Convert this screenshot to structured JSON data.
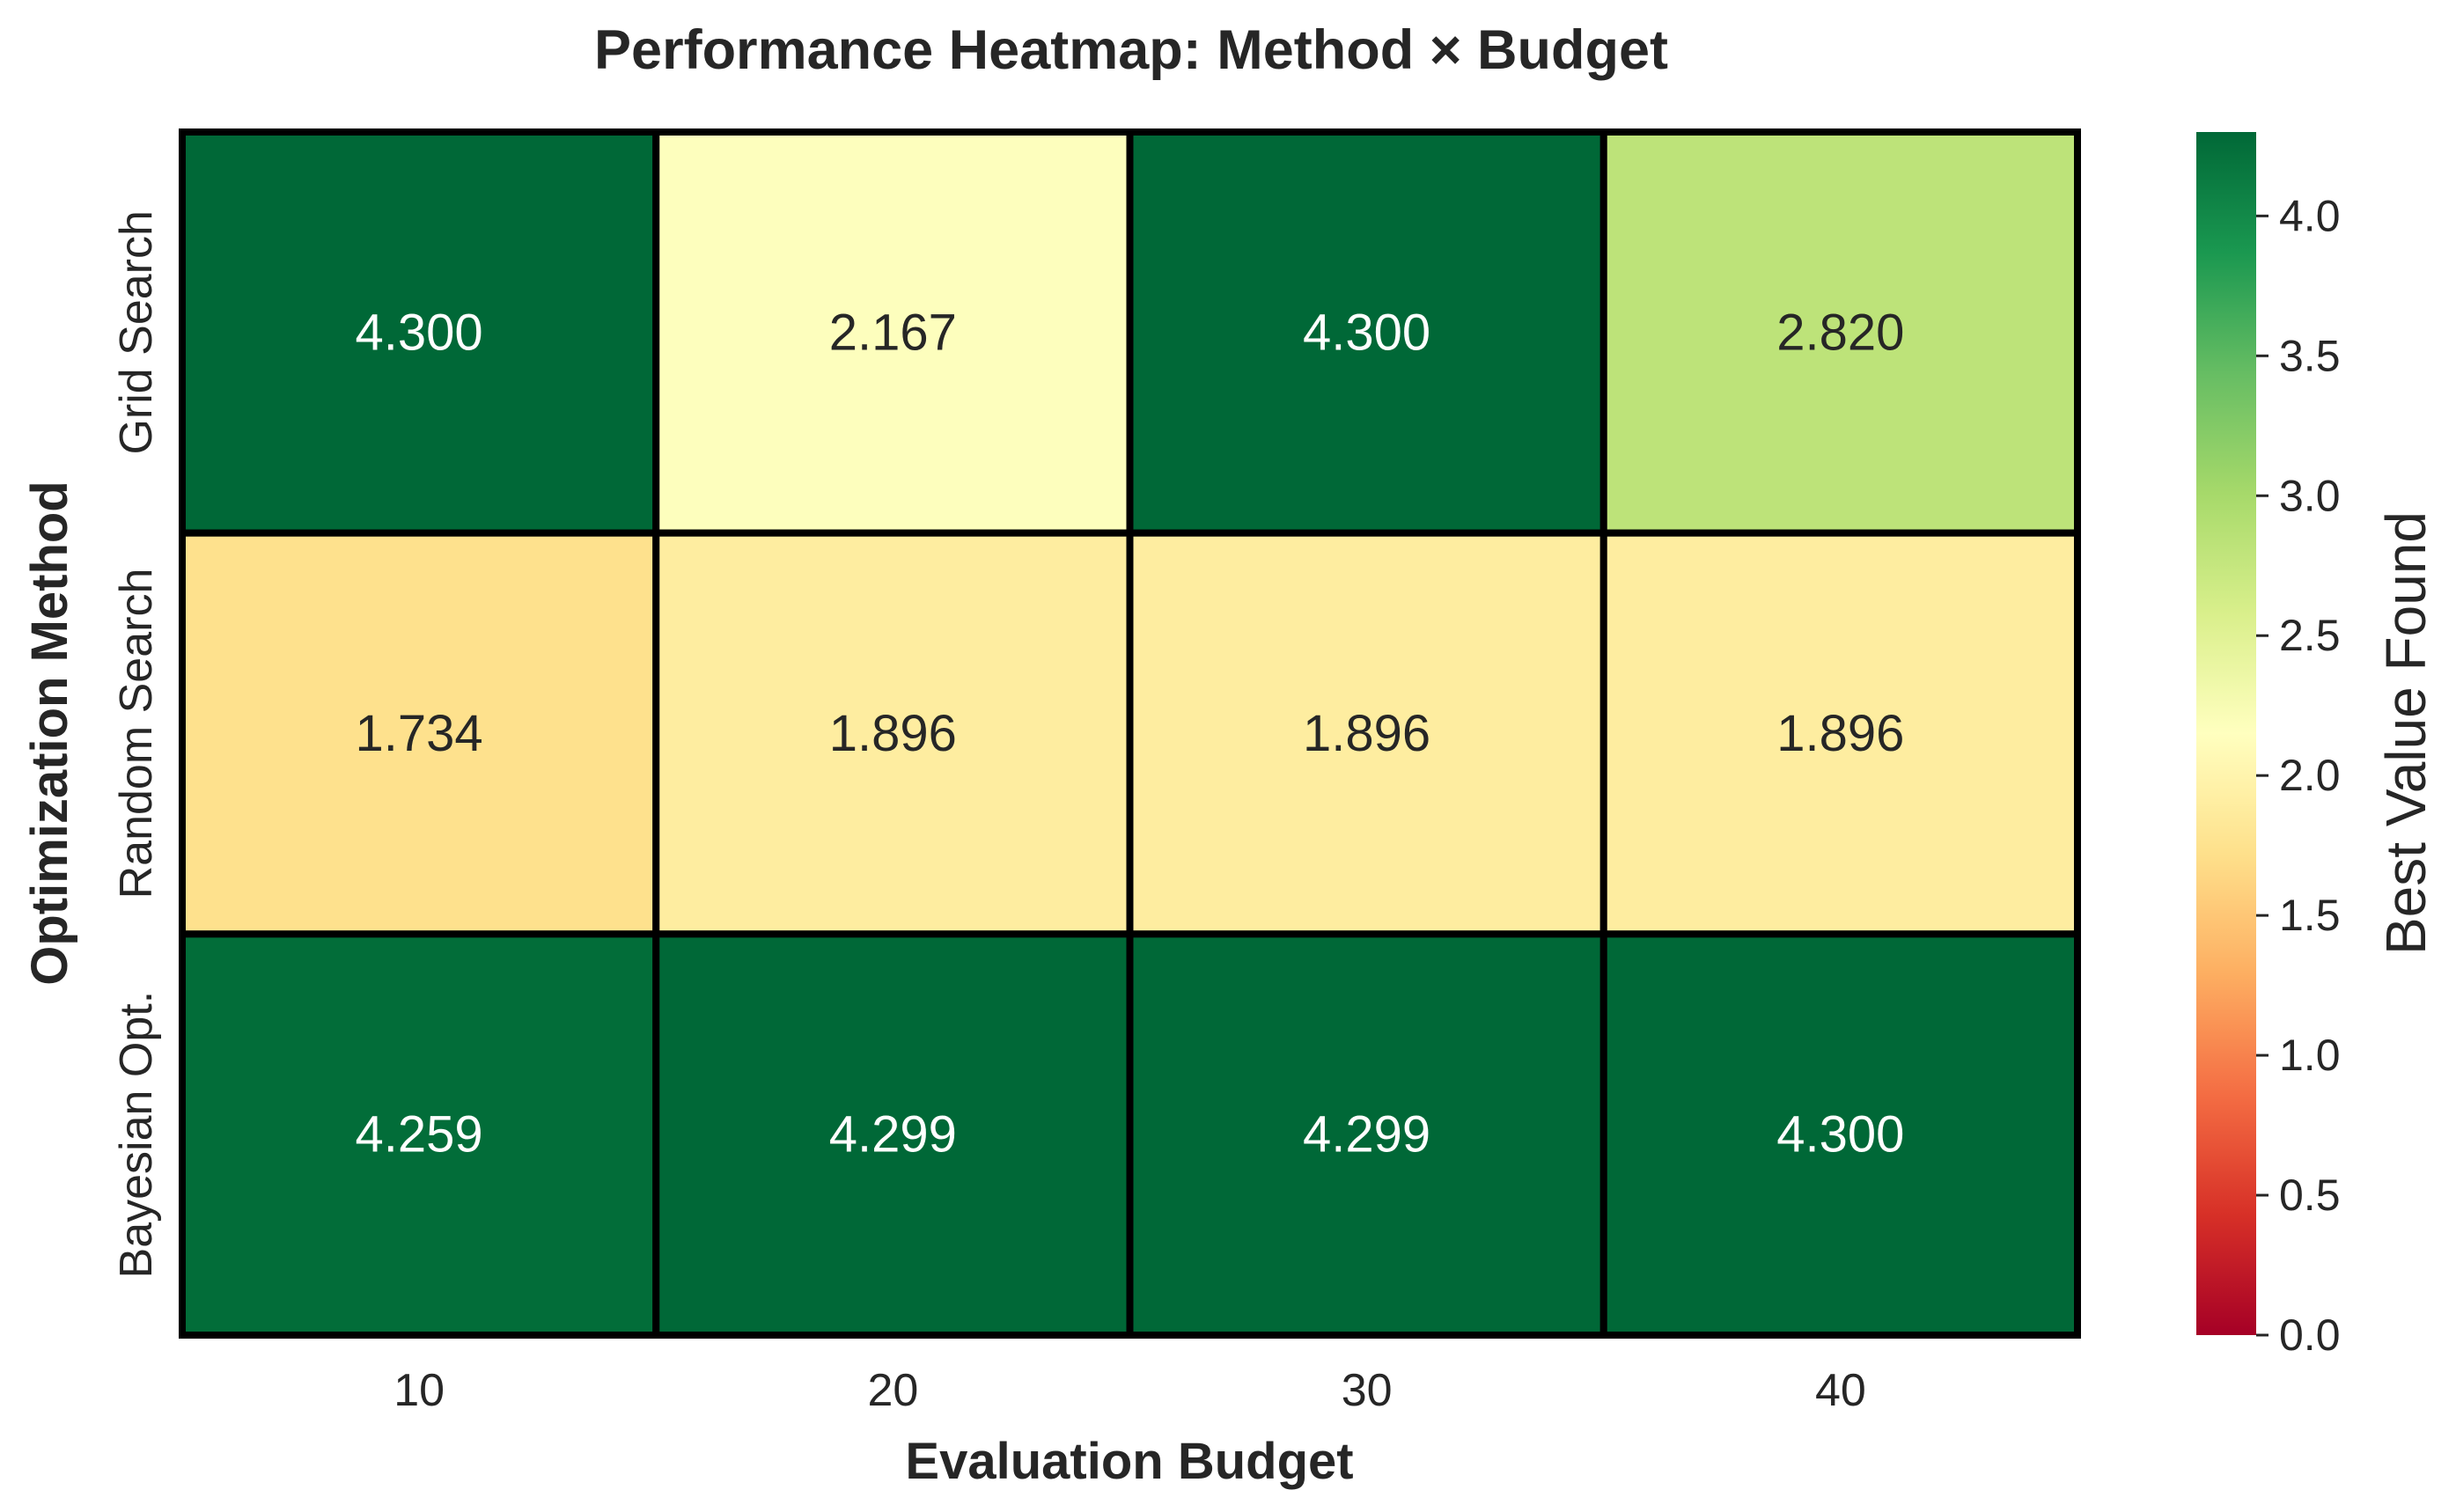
{
  "chart_data": {
    "type": "heatmap",
    "title": "Performance Heatmap: Method × Budget",
    "xlabel": "Evaluation Budget",
    "ylabel": "Optimization Method",
    "x_categories": [
      "10",
      "20",
      "30",
      "40"
    ],
    "y_categories": [
      "Grid Search",
      "Random Search",
      "Bayesian Opt."
    ],
    "values": [
      [
        4.3,
        2.167,
        4.3,
        2.82
      ],
      [
        1.734,
        1.896,
        1.896,
        1.896
      ],
      [
        4.259,
        4.299,
        4.299,
        4.3
      ]
    ],
    "value_labels": [
      [
        "4.300",
        "2.167",
        "4.300",
        "2.820"
      ],
      [
        "1.734",
        "1.896",
        "1.896",
        "1.896"
      ],
      [
        "4.259",
        "4.299",
        "4.299",
        "4.300"
      ]
    ],
    "colorbar": {
      "label": "Best Value Found",
      "range": [
        0,
        4.3
      ],
      "ticks": [
        0.0,
        0.5,
        1.0,
        1.5,
        2.0,
        2.5,
        3.0,
        3.5,
        4.0
      ],
      "tick_labels": [
        "0.0",
        "0.5",
        "1.0",
        "1.5",
        "2.0",
        "2.5",
        "3.0",
        "3.5",
        "4.0"
      ],
      "colormap": "RdYlGn"
    },
    "cell_border_color": "#000000"
  }
}
